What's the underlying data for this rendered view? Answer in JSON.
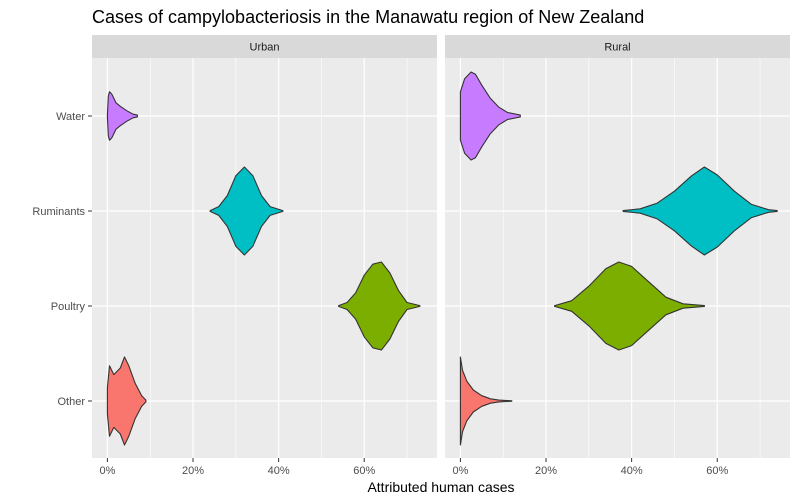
{
  "chart_data": {
    "type": "violin",
    "title": "Cases of campylobacteriosis in the Manawatu region of New Zealand",
    "xlabel": "Attributed human cases",
    "ylabel": "",
    "categories": [
      "Water",
      "Ruminants",
      "Poultry",
      "Other"
    ],
    "x_ticks": [
      "0%",
      "20%",
      "40%",
      "60%"
    ],
    "xlim": [
      -0.036,
      0.77
    ],
    "grid": true,
    "legend": "none",
    "colors": {
      "Water": "#C77CFF",
      "Ruminants": "#00BFC4",
      "Poultry": "#7CAE00",
      "Other": "#F8766D"
    },
    "panels": [
      {
        "name": "Urban",
        "series": [
          {
            "category": "Water",
            "x": [
              0.0,
              0.002,
              0.005,
              0.01,
              0.02,
              0.03,
              0.045,
              0.06,
              0.07
            ],
            "density": [
              0.02,
              0.45,
              0.55,
              0.5,
              0.3,
              0.22,
              0.12,
              0.04,
              0.02
            ]
          },
          {
            "category": "Ruminants",
            "x": [
              0.24,
              0.26,
              0.28,
              0.3,
              0.32,
              0.34,
              0.36,
              0.38,
              0.41
            ],
            "density": [
              0.01,
              0.1,
              0.35,
              0.8,
              1.0,
              0.8,
              0.35,
              0.1,
              0.01
            ]
          },
          {
            "category": "Poultry",
            "x": [
              0.54,
              0.56,
              0.58,
              0.6,
              0.62,
              0.64,
              0.66,
              0.68,
              0.7,
              0.73
            ],
            "density": [
              0.01,
              0.08,
              0.3,
              0.7,
              0.95,
              1.0,
              0.75,
              0.35,
              0.08,
              0.01
            ]
          },
          {
            "category": "Other",
            "x": [
              0.0,
              0.005,
              0.015,
              0.03,
              0.04,
              0.05,
              0.065,
              0.08,
              0.09
            ],
            "density": [
              0.3,
              0.8,
              0.6,
              0.75,
              1.0,
              0.8,
              0.4,
              0.12,
              0.02
            ]
          }
        ]
      },
      {
        "name": "Rural",
        "series": [
          {
            "category": "Water",
            "x": [
              0.0,
              0.01,
              0.025,
              0.035,
              0.05,
              0.07,
              0.09,
              0.11,
              0.14
            ],
            "density": [
              0.55,
              0.85,
              1.0,
              0.95,
              0.7,
              0.4,
              0.2,
              0.08,
              0.02
            ]
          },
          {
            "category": "Ruminants",
            "x": [
              0.38,
              0.42,
              0.46,
              0.5,
              0.54,
              0.57,
              0.6,
              0.64,
              0.68,
              0.72,
              0.74
            ],
            "density": [
              0.01,
              0.05,
              0.18,
              0.45,
              0.8,
              1.0,
              0.82,
              0.45,
              0.15,
              0.03,
              0.01
            ]
          },
          {
            "category": "Poultry",
            "x": [
              0.22,
              0.26,
              0.3,
              0.34,
              0.37,
              0.4,
              0.44,
              0.48,
              0.52,
              0.57
            ],
            "density": [
              0.01,
              0.12,
              0.45,
              0.85,
              1.0,
              0.9,
              0.55,
              0.2,
              0.05,
              0.01
            ]
          },
          {
            "category": "Other",
            "x": [
              0.0,
              0.005,
              0.015,
              0.03,
              0.05,
              0.07,
              0.09,
              0.12
            ],
            "density": [
              1.0,
              0.7,
              0.45,
              0.25,
              0.12,
              0.05,
              0.02,
              0.005
            ]
          }
        ]
      }
    ]
  }
}
